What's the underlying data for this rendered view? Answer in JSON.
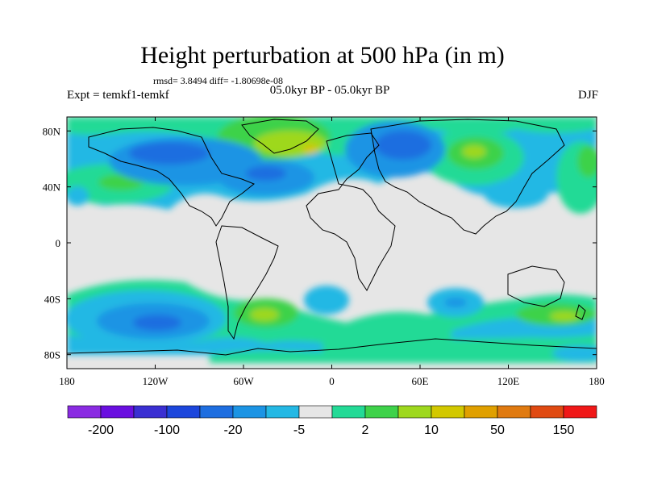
{
  "figure": {
    "title": "Height perturbation at 500 hPa (in m)",
    "stats": "rmsd= 3.8494 diff= -1.80698e-08",
    "experiment": "Expt = temkf1-temkf",
    "period": "05.0kyr BP - 05.0kyr BP",
    "season": "DJF"
  },
  "map": {
    "projection": "cylindrical equidistant",
    "lon_range": [
      -180,
      180
    ],
    "lat_range": [
      -90,
      90
    ],
    "lon_ticks": [
      "180",
      "120W",
      "60W",
      "0",
      "60E",
      "120E",
      "180"
    ],
    "lat_ticks": [
      "80N",
      "40N",
      "0",
      "40S",
      "80S"
    ],
    "background_color": "#e6e6e6",
    "coastline_color": "#000000"
  },
  "colorbar": {
    "colors": [
      "#8a2be2",
      "#6a0fe0",
      "#3a2fd2",
      "#1c46dc",
      "#1e6ee0",
      "#1c94e4",
      "#24b8e4",
      "#e6e6e6",
      "#23da96",
      "#3ed24a",
      "#9ed81e",
      "#d2c800",
      "#e0a000",
      "#e07a10",
      "#e04a12",
      "#f01818"
    ],
    "labels": [
      "-200",
      "-100",
      "-20",
      "-5",
      "2",
      "10",
      "50",
      "150"
    ]
  }
}
